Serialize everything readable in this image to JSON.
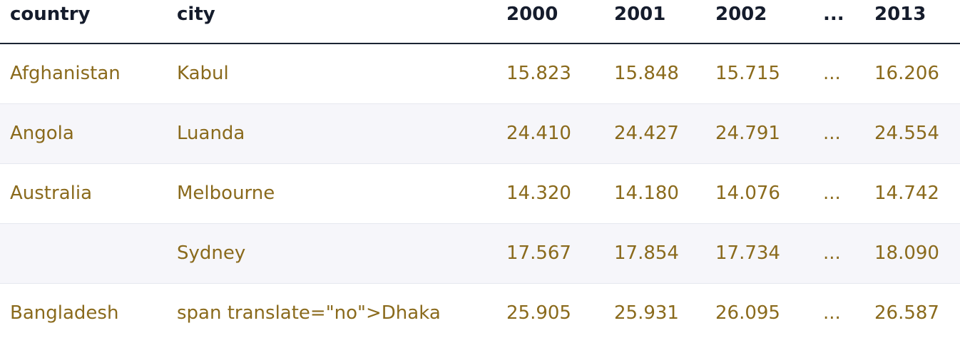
{
  "table": {
    "headers": [
      "country",
      "city",
      "2000",
      "2001",
      "2002",
      "...",
      "2013"
    ],
    "rows": [
      [
        "Afghanistan",
        "Kabul",
        "15.823",
        "15.848",
        "15.715",
        "...",
        "16.206"
      ],
      [
        "Angola",
        "Luanda",
        "24.410",
        "24.427",
        "24.791",
        "...",
        "24.554"
      ],
      [
        "Australia",
        "Melbourne",
        "14.320",
        "14.180",
        "14.076",
        "...",
        "14.742"
      ],
      [
        "",
        "Sydney",
        "17.567",
        "17.854",
        "17.734",
        "...",
        "18.090"
      ],
      [
        "Bangladesh",
        "span translate=\"no\">Dhaka",
        "25.905",
        "25.931",
        "26.095",
        "...",
        "26.587"
      ]
    ]
  },
  "colors": {
    "header_text": "#151c2c",
    "cell_text": "#8a6a1c",
    "stripe": "#f6f6fa",
    "header_rule": "#1b2433"
  }
}
